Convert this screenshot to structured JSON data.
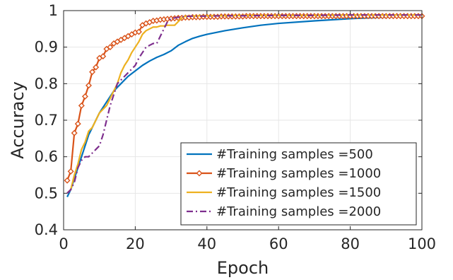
{
  "chart_data": {
    "type": "line",
    "xlabel": "Epoch",
    "ylabel": "Accuracy",
    "xlim": [
      0,
      100
    ],
    "ylim": [
      0.4,
      1
    ],
    "xticks": [
      0,
      20,
      40,
      60,
      80,
      100
    ],
    "yticks": [
      0.4,
      0.5,
      0.6,
      0.7,
      0.8,
      0.9,
      1
    ],
    "xtick_labels": [
      "0",
      "20",
      "40",
      "60",
      "80",
      "100"
    ],
    "ytick_labels": [
      "0.4",
      "0.5",
      "0.6",
      "0.7",
      "0.8",
      "0.9",
      "1"
    ],
    "grid": true,
    "legend_position": "bottom-right",
    "series": [
      {
        "name": "#Training samples =500",
        "color": "#0072BD",
        "dash": "solid",
        "marker": "none",
        "x": [
          1,
          2,
          3,
          4,
          5,
          6,
          7,
          8,
          9,
          10,
          12,
          14,
          16,
          18,
          20,
          22,
          24,
          26,
          28,
          30,
          32,
          34,
          36,
          38,
          40,
          45,
          50,
          55,
          60,
          70,
          80,
          90,
          100
        ],
        "y": [
          0.49,
          0.51,
          0.54,
          0.57,
          0.6,
          0.63,
          0.66,
          0.68,
          0.7,
          0.72,
          0.75,
          0.78,
          0.8,
          0.82,
          0.835,
          0.85,
          0.862,
          0.872,
          0.88,
          0.89,
          0.905,
          0.915,
          0.924,
          0.93,
          0.935,
          0.945,
          0.953,
          0.96,
          0.965,
          0.972,
          0.978,
          0.982,
          0.985
        ]
      },
      {
        "name": "#Training samples =1000",
        "color": "#D95319",
        "dash": "solid",
        "marker": "diamond",
        "x": [
          1,
          2,
          3,
          4,
          5,
          6,
          7,
          8,
          9,
          10,
          11,
          12,
          13,
          14,
          15,
          16,
          17,
          18,
          19,
          20,
          21,
          22,
          23,
          24,
          25,
          26,
          27,
          28,
          29,
          30,
          31,
          32,
          33,
          34,
          35,
          36,
          37,
          38,
          39,
          40,
          41,
          42,
          43,
          44,
          45,
          46,
          47,
          48,
          49,
          50,
          51,
          52,
          53,
          54,
          55,
          56,
          57,
          58,
          59,
          60,
          61,
          62,
          63,
          64,
          65,
          66,
          67,
          68,
          69,
          70,
          71,
          72,
          73,
          74,
          75,
          76,
          77,
          78,
          79,
          80,
          81,
          82,
          83,
          84,
          85,
          86,
          87,
          88,
          89,
          90,
          91,
          92,
          93,
          94,
          95,
          96,
          97,
          98,
          99,
          100
        ],
        "y": [
          0.535,
          0.56,
          0.665,
          0.69,
          0.74,
          0.765,
          0.795,
          0.832,
          0.845,
          0.87,
          0.875,
          0.895,
          0.9,
          0.91,
          0.915,
          0.92,
          0.925,
          0.93,
          0.935,
          0.94,
          0.942,
          0.96,
          0.965,
          0.968,
          0.972,
          0.973,
          0.975,
          0.976,
          0.977,
          0.978,
          0.979,
          0.98,
          0.98,
          0.981,
          0.981,
          0.982,
          0.982,
          0.982,
          0.983,
          0.983,
          0.983,
          0.983,
          0.983,
          0.984,
          0.984,
          0.984,
          0.984,
          0.984,
          0.984,
          0.984,
          0.985,
          0.985,
          0.985,
          0.985,
          0.985,
          0.985,
          0.985,
          0.985,
          0.985,
          0.985,
          0.985,
          0.985,
          0.985,
          0.985,
          0.985,
          0.985,
          0.985,
          0.985,
          0.985,
          0.985,
          0.985,
          0.985,
          0.985,
          0.985,
          0.985,
          0.985,
          0.985,
          0.985,
          0.985,
          0.985,
          0.985,
          0.985,
          0.985,
          0.985,
          0.985,
          0.985,
          0.985,
          0.985,
          0.985,
          0.985,
          0.985,
          0.985,
          0.985,
          0.985,
          0.985,
          0.985,
          0.985,
          0.985,
          0.985,
          0.985
        ]
      },
      {
        "name": "#Training samples =1500",
        "color": "#EDB120",
        "dash": "solid",
        "marker": "none",
        "x": [
          1,
          2,
          3,
          4,
          5,
          6,
          7,
          8,
          9,
          10,
          11,
          12,
          13,
          14,
          15,
          16,
          17,
          18,
          19,
          20,
          21,
          22,
          23,
          24,
          25,
          26,
          27,
          28,
          29,
          30,
          31,
          32,
          33,
          34,
          35,
          36,
          38,
          40,
          45,
          50,
          60,
          70,
          80,
          90,
          100
        ],
        "y": [
          0.5,
          0.51,
          0.55,
          0.58,
          0.62,
          0.64,
          0.67,
          0.68,
          0.7,
          0.72,
          0.73,
          0.74,
          0.76,
          0.78,
          0.8,
          0.83,
          0.85,
          0.865,
          0.885,
          0.9,
          0.915,
          0.935,
          0.945,
          0.95,
          0.955,
          0.955,
          0.958,
          0.958,
          0.96,
          0.96,
          0.96,
          0.97,
          0.98,
          0.985,
          0.985,
          0.985,
          0.986,
          0.986,
          0.986,
          0.987,
          0.987,
          0.987,
          0.988,
          0.988,
          0.988
        ]
      },
      {
        "name": "#Training samples =2000",
        "color": "#7E2F8E",
        "dash": "dashdot",
        "marker": "none",
        "x": [
          1,
          2,
          3,
          4,
          5,
          6,
          7,
          8,
          9,
          10,
          11,
          12,
          13,
          14,
          15,
          16,
          17,
          18,
          19,
          20,
          21,
          22,
          23,
          24,
          25,
          26,
          27,
          28,
          29,
          30,
          31,
          32,
          34,
          36,
          40,
          45,
          50,
          60,
          70,
          80,
          90,
          100
        ],
        "y": [
          0.5,
          0.51,
          0.53,
          0.57,
          0.59,
          0.6,
          0.6,
          0.61,
          0.62,
          0.63,
          0.66,
          0.7,
          0.74,
          0.77,
          0.8,
          0.81,
          0.82,
          0.83,
          0.84,
          0.85,
          0.87,
          0.885,
          0.9,
          0.905,
          0.91,
          0.91,
          0.93,
          0.95,
          0.97,
          0.978,
          0.98,
          0.982,
          0.984,
          0.985,
          0.985,
          0.986,
          0.986,
          0.987,
          0.987,
          0.988,
          0.988,
          0.988
        ]
      }
    ]
  }
}
